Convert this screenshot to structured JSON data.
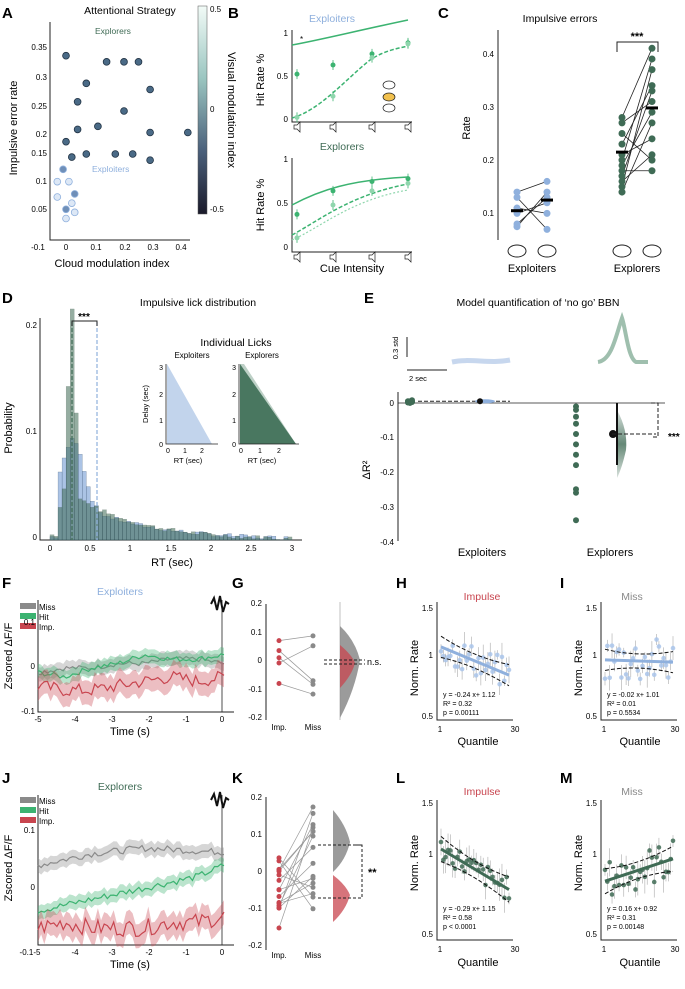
{
  "panel_letters": [
    "A",
    "B",
    "C",
    "D",
    "E",
    "F",
    "G",
    "H",
    "I",
    "J",
    "K",
    "L",
    "M"
  ],
  "colors": {
    "exploiters": "#8fb0dd",
    "explorers": "#3f6b55",
    "hit": "#3cb371",
    "miss": "#8a8a8a",
    "imp": "#c8454f"
  },
  "panel_a": {
    "title": "Attentional Strategy",
    "xlabel": "Cloud modulation index",
    "ylabel": "Impulsive error rate",
    "cbar_label": "Visual modulation index",
    "cbar_ticks": [
      "0.5",
      "0",
      "-0.5"
    ],
    "explorers_label": "Explorers",
    "exploiters_label": "Exploiters",
    "xticks": [
      "-0.1",
      "0",
      "0.1",
      "0.2",
      "0.3",
      "0.4"
    ],
    "yticks": [
      "0.35",
      "0.3",
      "0.25",
      "0.2",
      "0.15",
      "0.1",
      "0.05"
    ]
  },
  "panel_b": {
    "top_title": "Exploiters",
    "bottom_title": "Explorers",
    "ylabel": "Hit Rate %",
    "xlabel": "Cue Intensity",
    "yticks": [
      "1",
      "0.5",
      "0"
    ]
  },
  "panel_c": {
    "title": "Impulsive errors",
    "ylabel": "Rate",
    "sig": "***",
    "groups": [
      "Exploiters",
      "Explorers"
    ],
    "yticks": [
      "0.4",
      "0.3",
      "0.2",
      "0.1"
    ]
  },
  "panel_d": {
    "title": "Impulsive lick distribution",
    "xlabel": "RT (sec)",
    "ylabel": "Probability",
    "sig": "***",
    "inset_title": "Individual Licks",
    "inset_left": "Exploiters",
    "inset_right": "Explorers",
    "inset_ylabel": "Delay (sec)",
    "inset_xlabel": "RT (sec)",
    "yticks": [
      "0.2",
      "0.1",
      "0"
    ],
    "xticks": [
      "0",
      "0.5",
      "1",
      "1.5",
      "2",
      "2.5",
      "3"
    ]
  },
  "panel_e": {
    "title": "Model quantification of ‘no go’ BBN",
    "ylabel": "ΔR²",
    "scale_v": "0.3 std",
    "scale_h": "2 sec",
    "sig": "***",
    "groups": [
      "Exploiters",
      "Explorers"
    ],
    "yticks": [
      "0",
      "-0.1",
      "-0.2",
      "-0.3",
      "-0.4"
    ]
  },
  "panel_f": {
    "title": "Exploiters",
    "legend": [
      "Miss",
      "Hit",
      "Imp."
    ],
    "ylabel": "Zscored ΔF/F",
    "xlabel": "Time (s)",
    "xticks": [
      "-5",
      "-4",
      "-3",
      "-2",
      "-1",
      "0"
    ],
    "yticks": [
      "0.1",
      "0",
      "-0.1"
    ]
  },
  "panel_g": {
    "sig": "n.s.",
    "xticks": [
      "Imp.",
      "Miss"
    ],
    "yticks": [
      "0.2",
      "0.1",
      "0",
      "-0.1",
      "-0.2"
    ]
  },
  "panel_h": {
    "title": "Impulse",
    "ylabel": "Norm. Rate",
    "xlabel": "Quantile",
    "eq": "y = -0.24 x+ 1.12",
    "r2": "R² = 0.32",
    "p": "p = 0.00111",
    "yticks": [
      "1.5",
      "1",
      "0.5"
    ],
    "xticks": [
      "1",
      "30"
    ]
  },
  "panel_i": {
    "title": "Miss",
    "ylabel": "Norm. Rate",
    "xlabel": "Quantile",
    "eq": "y = -0.02 x+ 1.01",
    "r2": "R² = 0.01",
    "p": "p = 0.5534",
    "yticks": [
      "1.5",
      "1",
      "0.5"
    ],
    "xticks": [
      "1",
      "30"
    ]
  },
  "panel_j": {
    "title": "Explorers",
    "legend": [
      "Miss",
      "Hit",
      "Imp."
    ],
    "ylabel": "Zscored ΔF/F",
    "xlabel": "Time (s)",
    "xticks": [
      "-0.1-5",
      "-4",
      "-3",
      "-2",
      "-1",
      "0"
    ],
    "yticks": [
      "0.1",
      "0"
    ]
  },
  "panel_k": {
    "sig": "**",
    "xticks": [
      "Imp.",
      "Miss"
    ],
    "yticks": [
      "0.2",
      "0.1",
      "0",
      "-0.1",
      "-0.2"
    ]
  },
  "panel_l": {
    "title": "Impulse",
    "ylabel": "Norm. Rate",
    "xlabel": "Quantile",
    "eq": "y = -0.29 x+ 1.15",
    "r2": "R² = 0.58",
    "p": "p < 0.0001",
    "yticks": [
      "1.5",
      "1",
      "0.5"
    ],
    "xticks": [
      "1",
      "30"
    ]
  },
  "panel_m": {
    "title": "Miss",
    "ylabel": "Norm. Rate",
    "xlabel": "Quantile",
    "eq": "y = 0.16 x+ 0.92",
    "r2": "R² = 0.31",
    "p": "p = 0.00148",
    "yticks": [
      "1.5",
      "1",
      "0.5"
    ],
    "xticks": [
      "1",
      "30"
    ]
  },
  "chart_data": [
    {
      "type": "scatter",
      "id": "A",
      "title": "Attentional Strategy",
      "xlabel": "Cloud modulation index",
      "ylabel": "Impulsive error rate",
      "xlim": [
        -0.1,
        0.45
      ],
      "ylim": [
        0.05,
        0.4
      ],
      "points": [
        [
          0,
          0.35
        ],
        [
          0.07,
          0.305
        ],
        [
          0.14,
          0.34
        ],
        [
          0.2,
          0.34
        ],
        [
          0.25,
          0.34
        ],
        [
          0.29,
          0.295
        ],
        [
          0.04,
          0.275
        ],
        [
          0.2,
          0.26
        ],
        [
          0.11,
          0.235
        ],
        [
          0.04,
          0.23
        ],
        [
          0,
          0.21
        ],
        [
          0.29,
          0.225
        ],
        [
          0.42,
          0.225
        ],
        [
          0.07,
          0.19
        ],
        [
          0.17,
          0.19
        ],
        [
          0.23,
          0.19
        ],
        [
          0.29,
          0.18
        ],
        [
          0.02,
          0.185
        ],
        [
          -0.01,
          0.165
        ],
        [
          -0.03,
          0.145
        ],
        [
          0.01,
          0.145
        ],
        [
          0.03,
          0.125
        ],
        [
          -0.03,
          0.12
        ],
        [
          0.02,
          0.11
        ],
        [
          0,
          0.1
        ],
        [
          0.03,
          0.095
        ],
        [
          0,
          0.085
        ]
      ]
    },
    {
      "type": "line",
      "id": "B-top",
      "title": "Exploiters",
      "xlabel": "Cue Intensity",
      "ylabel": "Hit Rate %",
      "ylim": [
        0,
        1
      ],
      "series": [
        {
          "name": "cloud",
          "x": [
            1,
            2,
            3,
            4
          ],
          "values": [
            0.52,
            0.62,
            0.74,
            0.86
          ]
        },
        {
          "name": "no cloud",
          "x": [
            1,
            2,
            3,
            4
          ],
          "values": [
            0.05,
            0.28,
            0.7,
            0.85
          ]
        }
      ]
    },
    {
      "type": "line",
      "id": "B-bottom",
      "title": "Explorers",
      "xlabel": "Cue Intensity",
      "ylabel": "Hit Rate %",
      "ylim": [
        0,
        1
      ],
      "series": [
        {
          "name": "cloud",
          "x": [
            1,
            2,
            3,
            4
          ],
          "values": [
            0.4,
            0.65,
            0.75,
            0.78
          ]
        },
        {
          "name": "no cloud",
          "x": [
            1,
            2,
            3,
            4
          ],
          "values": [
            0.15,
            0.5,
            0.65,
            0.73
          ]
        }
      ]
    },
    {
      "type": "scatter",
      "id": "C",
      "title": "Impulsive errors",
      "ylabel": "Rate",
      "categories": [
        "Exploiters",
        "Explorers"
      ],
      "ylim": [
        0.05,
        0.45
      ],
      "series": [
        {
          "name": "Exploiters",
          "cond1": [
            0.14,
            0.13,
            0.11,
            0.1,
            0.08,
            0.075
          ],
          "cond2": [
            0.16,
            0.14,
            0.13,
            0.12,
            0.1,
            0.07
          ],
          "mean1": 0.105,
          "mean2": 0.125
        },
        {
          "name": "Explorers",
          "cond1": [
            0.28,
            0.27,
            0.25,
            0.23,
            0.21,
            0.2,
            0.19,
            0.18,
            0.17,
            0.16,
            0.15,
            0.14
          ],
          "cond2": [
            0.41,
            0.39,
            0.37,
            0.34,
            0.33,
            0.31,
            0.29,
            0.27,
            0.24,
            0.21,
            0.2,
            0.18
          ],
          "mean1": 0.215,
          "mean2": 0.298
        }
      ]
    },
    {
      "type": "bar",
      "id": "D",
      "title": "Impulsive lick distribution",
      "xlabel": "RT (sec)",
      "ylabel": "Probability",
      "xlim": [
        0,
        3
      ],
      "ylim": [
        0,
        0.21
      ],
      "series": [
        {
          "name": "Explorers",
          "median": 0.3
        },
        {
          "name": "Exploiters",
          "median": 0.55
        }
      ]
    },
    {
      "type": "scatter",
      "id": "E",
      "title": "Model quantification of ‘no go’ BBN",
      "ylabel": "ΔR²",
      "categories": [
        "Exploiters",
        "Explorers"
      ],
      "ylim": [
        -0.4,
        0.02
      ],
      "series": [
        {
          "name": "Exploiters",
          "mean": 0.005
        },
        {
          "name": "Explorers",
          "mean": -0.09,
          "values": [
            -0.01,
            -0.02,
            -0.04,
            -0.06,
            -0.09,
            -0.12,
            -0.15,
            -0.18,
            -0.25,
            -0.26,
            -0.34
          ]
        }
      ]
    },
    {
      "type": "line",
      "id": "F",
      "title": "Exploiters",
      "xlabel": "Time (s)",
      "ylabel": "Zscored ΔF/F",
      "xlim": [
        -5,
        0.2
      ],
      "ylim": [
        -0.1,
        0.15
      ],
      "series": [
        {
          "name": "Miss",
          "values": [
            -0.01,
            0,
            0,
            0.01,
            0.01,
            0.02,
            0.02,
            0.01
          ]
        },
        {
          "name": "Hit",
          "values": [
            -0.01,
            -0.02,
            0,
            0.01,
            0.03,
            0.02,
            0.02,
            0.03
          ]
        },
        {
          "name": "Imp.",
          "values": [
            -0.04,
            -0.05,
            -0.05,
            -0.04,
            -0.03,
            -0.02,
            -0.03,
            -0.02
          ]
        }
      ]
    },
    {
      "type": "line",
      "id": "J",
      "title": "Explorers",
      "xlabel": "Time (s)",
      "ylabel": "Zscored ΔF/F",
      "xlim": [
        -5,
        0.2
      ],
      "ylim": [
        -0.1,
        0.15
      ],
      "series": [
        {
          "name": "Miss",
          "values": [
            0.04,
            0.05,
            0.06,
            0.065,
            0.07,
            0.068,
            0.065,
            0.063
          ]
        },
        {
          "name": "Hit",
          "values": [
            -0.04,
            -0.03,
            -0.02,
            -0.01,
            0,
            0.01,
            0.02,
            0.04
          ]
        },
        {
          "name": "Imp.",
          "values": [
            -0.07,
            -0.06,
            -0.07,
            -0.07,
            -0.07,
            -0.06,
            -0.06,
            -0.05
          ]
        }
      ]
    },
    {
      "type": "scatter",
      "id": "H",
      "title": "Impulse",
      "slope": -0.24,
      "intercept": 1.12,
      "r2": 0.32,
      "p": 0.00111
    },
    {
      "type": "scatter",
      "id": "I",
      "title": "Miss",
      "slope": -0.02,
      "intercept": 1.01,
      "r2": 0.01,
      "p": 0.5534
    },
    {
      "type": "scatter",
      "id": "L",
      "title": "Impulse",
      "slope": -0.29,
      "intercept": 1.15,
      "r2": 0.58,
      "p": 0.0001
    },
    {
      "type": "scatter",
      "id": "M",
      "title": "Miss",
      "slope": 0.16,
      "intercept": 0.92,
      "r2": 0.31,
      "p": 0.00148
    }
  ]
}
